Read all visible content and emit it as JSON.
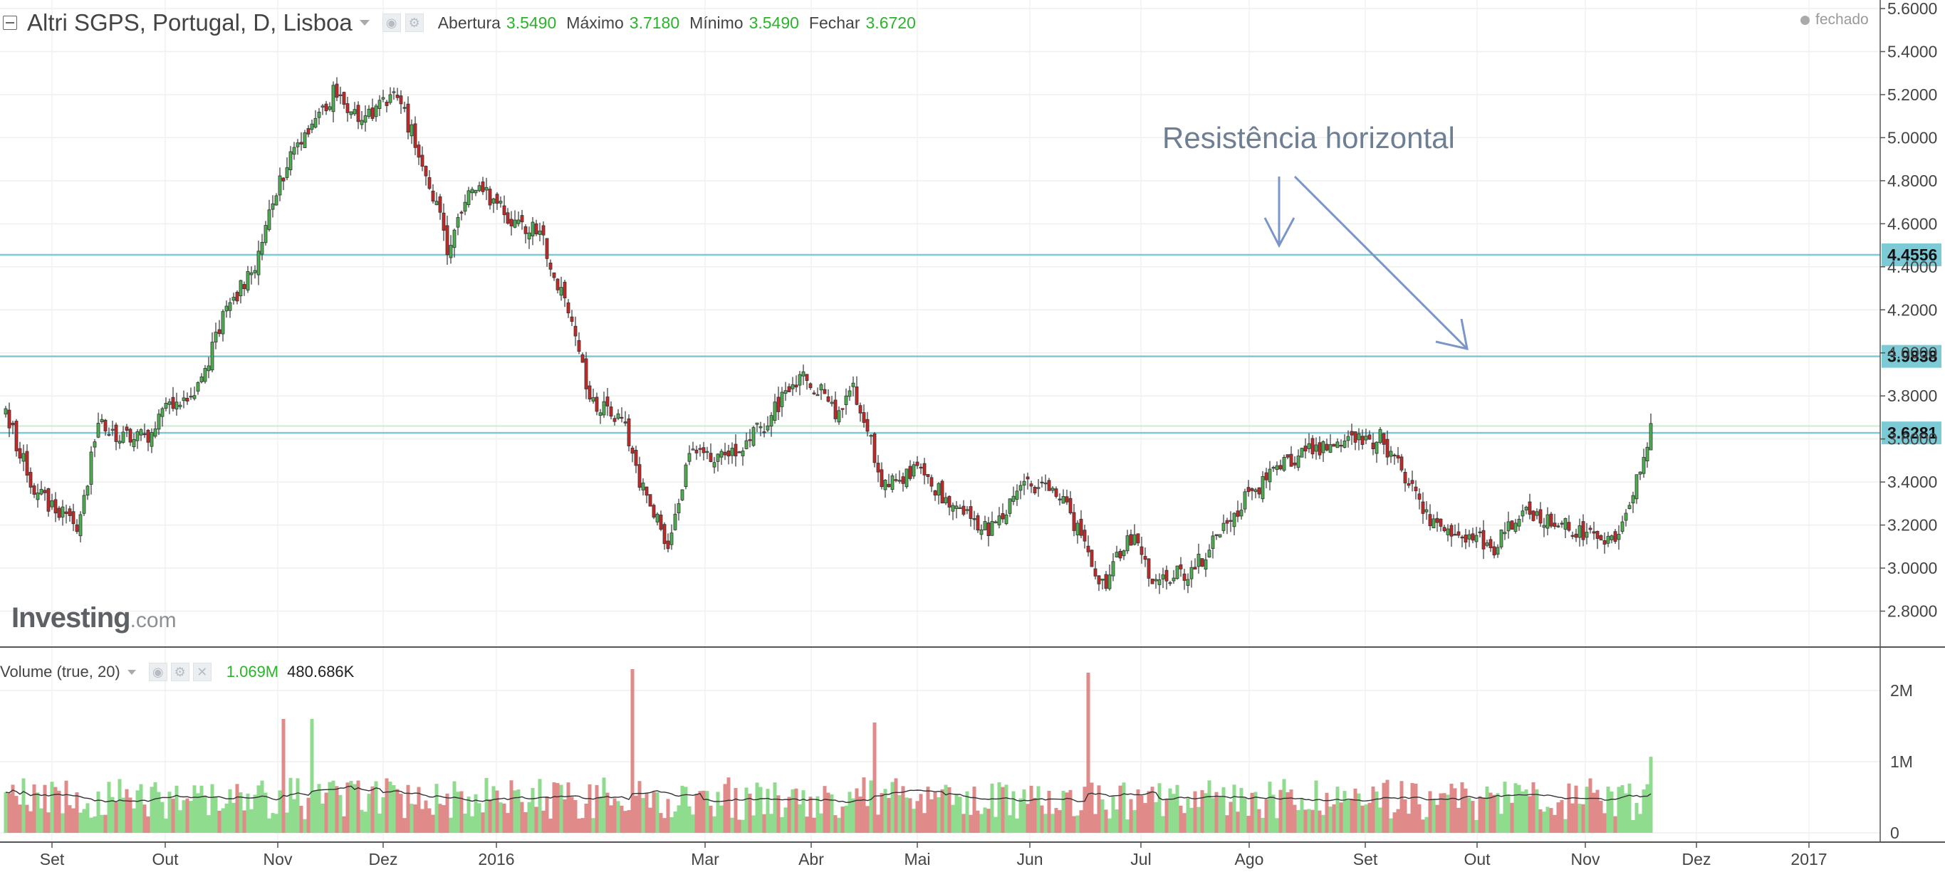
{
  "header": {
    "symbol": "Altri SGPS, Portugal, D, Lisboa",
    "ohlc": [
      {
        "label": "Abertura",
        "value": "3.5490"
      },
      {
        "label": "Máximo",
        "value": "3.7180"
      },
      {
        "label": "Mínimo",
        "value": "3.5490"
      },
      {
        "label": "Fechar",
        "value": "3.6720"
      }
    ],
    "status": "fechado"
  },
  "watermark": {
    "brand": "Investing",
    "suffix": ".com"
  },
  "volume_header": {
    "name": "Volume (true, 20)",
    "value1": "1.069M",
    "value2": "480.686K"
  },
  "colors": {
    "up": "#4caf50",
    "down": "#c62828",
    "line": "#7ccad6",
    "vol_up": "#8fdc8f",
    "vol_down": "#e08a8a",
    "annotation": "#7a95c9"
  },
  "chart_data": {
    "type": "candlestick",
    "title": "Altri SGPS, Portugal, D, Lisboa",
    "ylim": [
      2.6,
      5.6
    ],
    "y_ticks": [
      "5.6000",
      "5.4000",
      "5.2000",
      "5.0000",
      "4.8000",
      "4.6000",
      "4.4000",
      "4.2000",
      "4.0000",
      "3.8000",
      "3.6000",
      "3.4000",
      "3.2000",
      "3.0000",
      "2.8000"
    ],
    "x_ticks": [
      "Set",
      "Out",
      "Nov",
      "Dez",
      "2016",
      "Mar",
      "Abr",
      "Mai",
      "Jun",
      "Jul",
      "Ago",
      "Set",
      "Out",
      "Nov",
      "Dez",
      "2017"
    ],
    "horizontal_lines": [
      {
        "value": 4.4556,
        "label": "4.4556"
      },
      {
        "value": 3.9838,
        "label": "3.9838"
      },
      {
        "value": 3.6281,
        "label": "3.6281"
      }
    ],
    "annotation": "Resistência horizontal",
    "close_anchors": [
      [
        0,
        3.72
      ],
      [
        8,
        3.35
      ],
      [
        14,
        3.28
      ],
      [
        20,
        3.2
      ],
      [
        26,
        3.65
      ],
      [
        34,
        3.62
      ],
      [
        40,
        3.62
      ],
      [
        44,
        3.75
      ],
      [
        54,
        3.85
      ],
      [
        62,
        4.2
      ],
      [
        70,
        4.4
      ],
      [
        80,
        4.95
      ],
      [
        92,
        5.2
      ],
      [
        100,
        5.1
      ],
      [
        110,
        5.2
      ],
      [
        118,
        4.85
      ],
      [
        124,
        4.5
      ],
      [
        132,
        4.8
      ],
      [
        140,
        4.65
      ],
      [
        150,
        4.55
      ],
      [
        158,
        4.2
      ],
      [
        164,
        3.8
      ],
      [
        174,
        3.65
      ],
      [
        180,
        3.3
      ],
      [
        186,
        3.12
      ],
      [
        192,
        3.55
      ],
      [
        200,
        3.5
      ],
      [
        212,
        3.65
      ],
      [
        224,
        3.92
      ],
      [
        234,
        3.7
      ],
      [
        238,
        3.85
      ],
      [
        240,
        3.75
      ],
      [
        246,
        3.4
      ],
      [
        256,
        3.45
      ],
      [
        268,
        3.25
      ],
      [
        276,
        3.18
      ],
      [
        288,
        3.4
      ],
      [
        296,
        3.35
      ],
      [
        308,
        2.92
      ],
      [
        316,
        3.15
      ],
      [
        322,
        2.95
      ],
      [
        334,
        3.0
      ],
      [
        344,
        3.25
      ],
      [
        356,
        3.45
      ],
      [
        366,
        3.55
      ],
      [
        378,
        3.58
      ],
      [
        386,
        3.6
      ],
      [
        392,
        3.45
      ],
      [
        400,
        3.2
      ],
      [
        410,
        3.15
      ],
      [
        418,
        3.1
      ],
      [
        426,
        3.25
      ],
      [
        434,
        3.22
      ],
      [
        444,
        3.15
      ],
      [
        452,
        3.12
      ],
      [
        458,
        3.4
      ],
      [
        462,
        3.67
      ]
    ],
    "volume": {
      "ylim": [
        0,
        2500000
      ],
      "y_ticks": [
        "2M",
        "1M",
        "0"
      ],
      "ma_period": 20,
      "spikes": [
        [
          78,
          1600000
        ],
        [
          86,
          1600000
        ],
        [
          176,
          2300000
        ],
        [
          244,
          1550000
        ],
        [
          304,
          2250000
        ]
      ]
    }
  }
}
